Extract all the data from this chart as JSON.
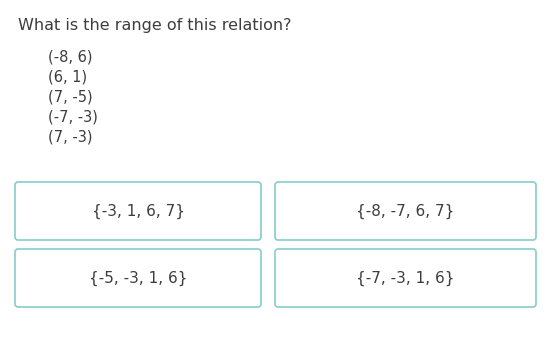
{
  "title": "What is the range of this relation?",
  "pairs_plain": [
    "(-8, 6)",
    "(6, 1)",
    "(7, -5)",
    "(-7, -3)",
    "(7, -3)"
  ],
  "options": [
    [
      "{-3, 1, 6, 7}",
      "{-8, -7, 6, 7}"
    ],
    [
      "{-5, -3, 1, 6}",
      "{-7, -3, 1, 6}"
    ]
  ],
  "bg_color": "#ffffff",
  "text_color": "#3d3d3d",
  "box_edge_color": "#88cccc",
  "title_fontsize": 11.5,
  "pairs_fontsize": 10.5,
  "option_fontsize": 11
}
